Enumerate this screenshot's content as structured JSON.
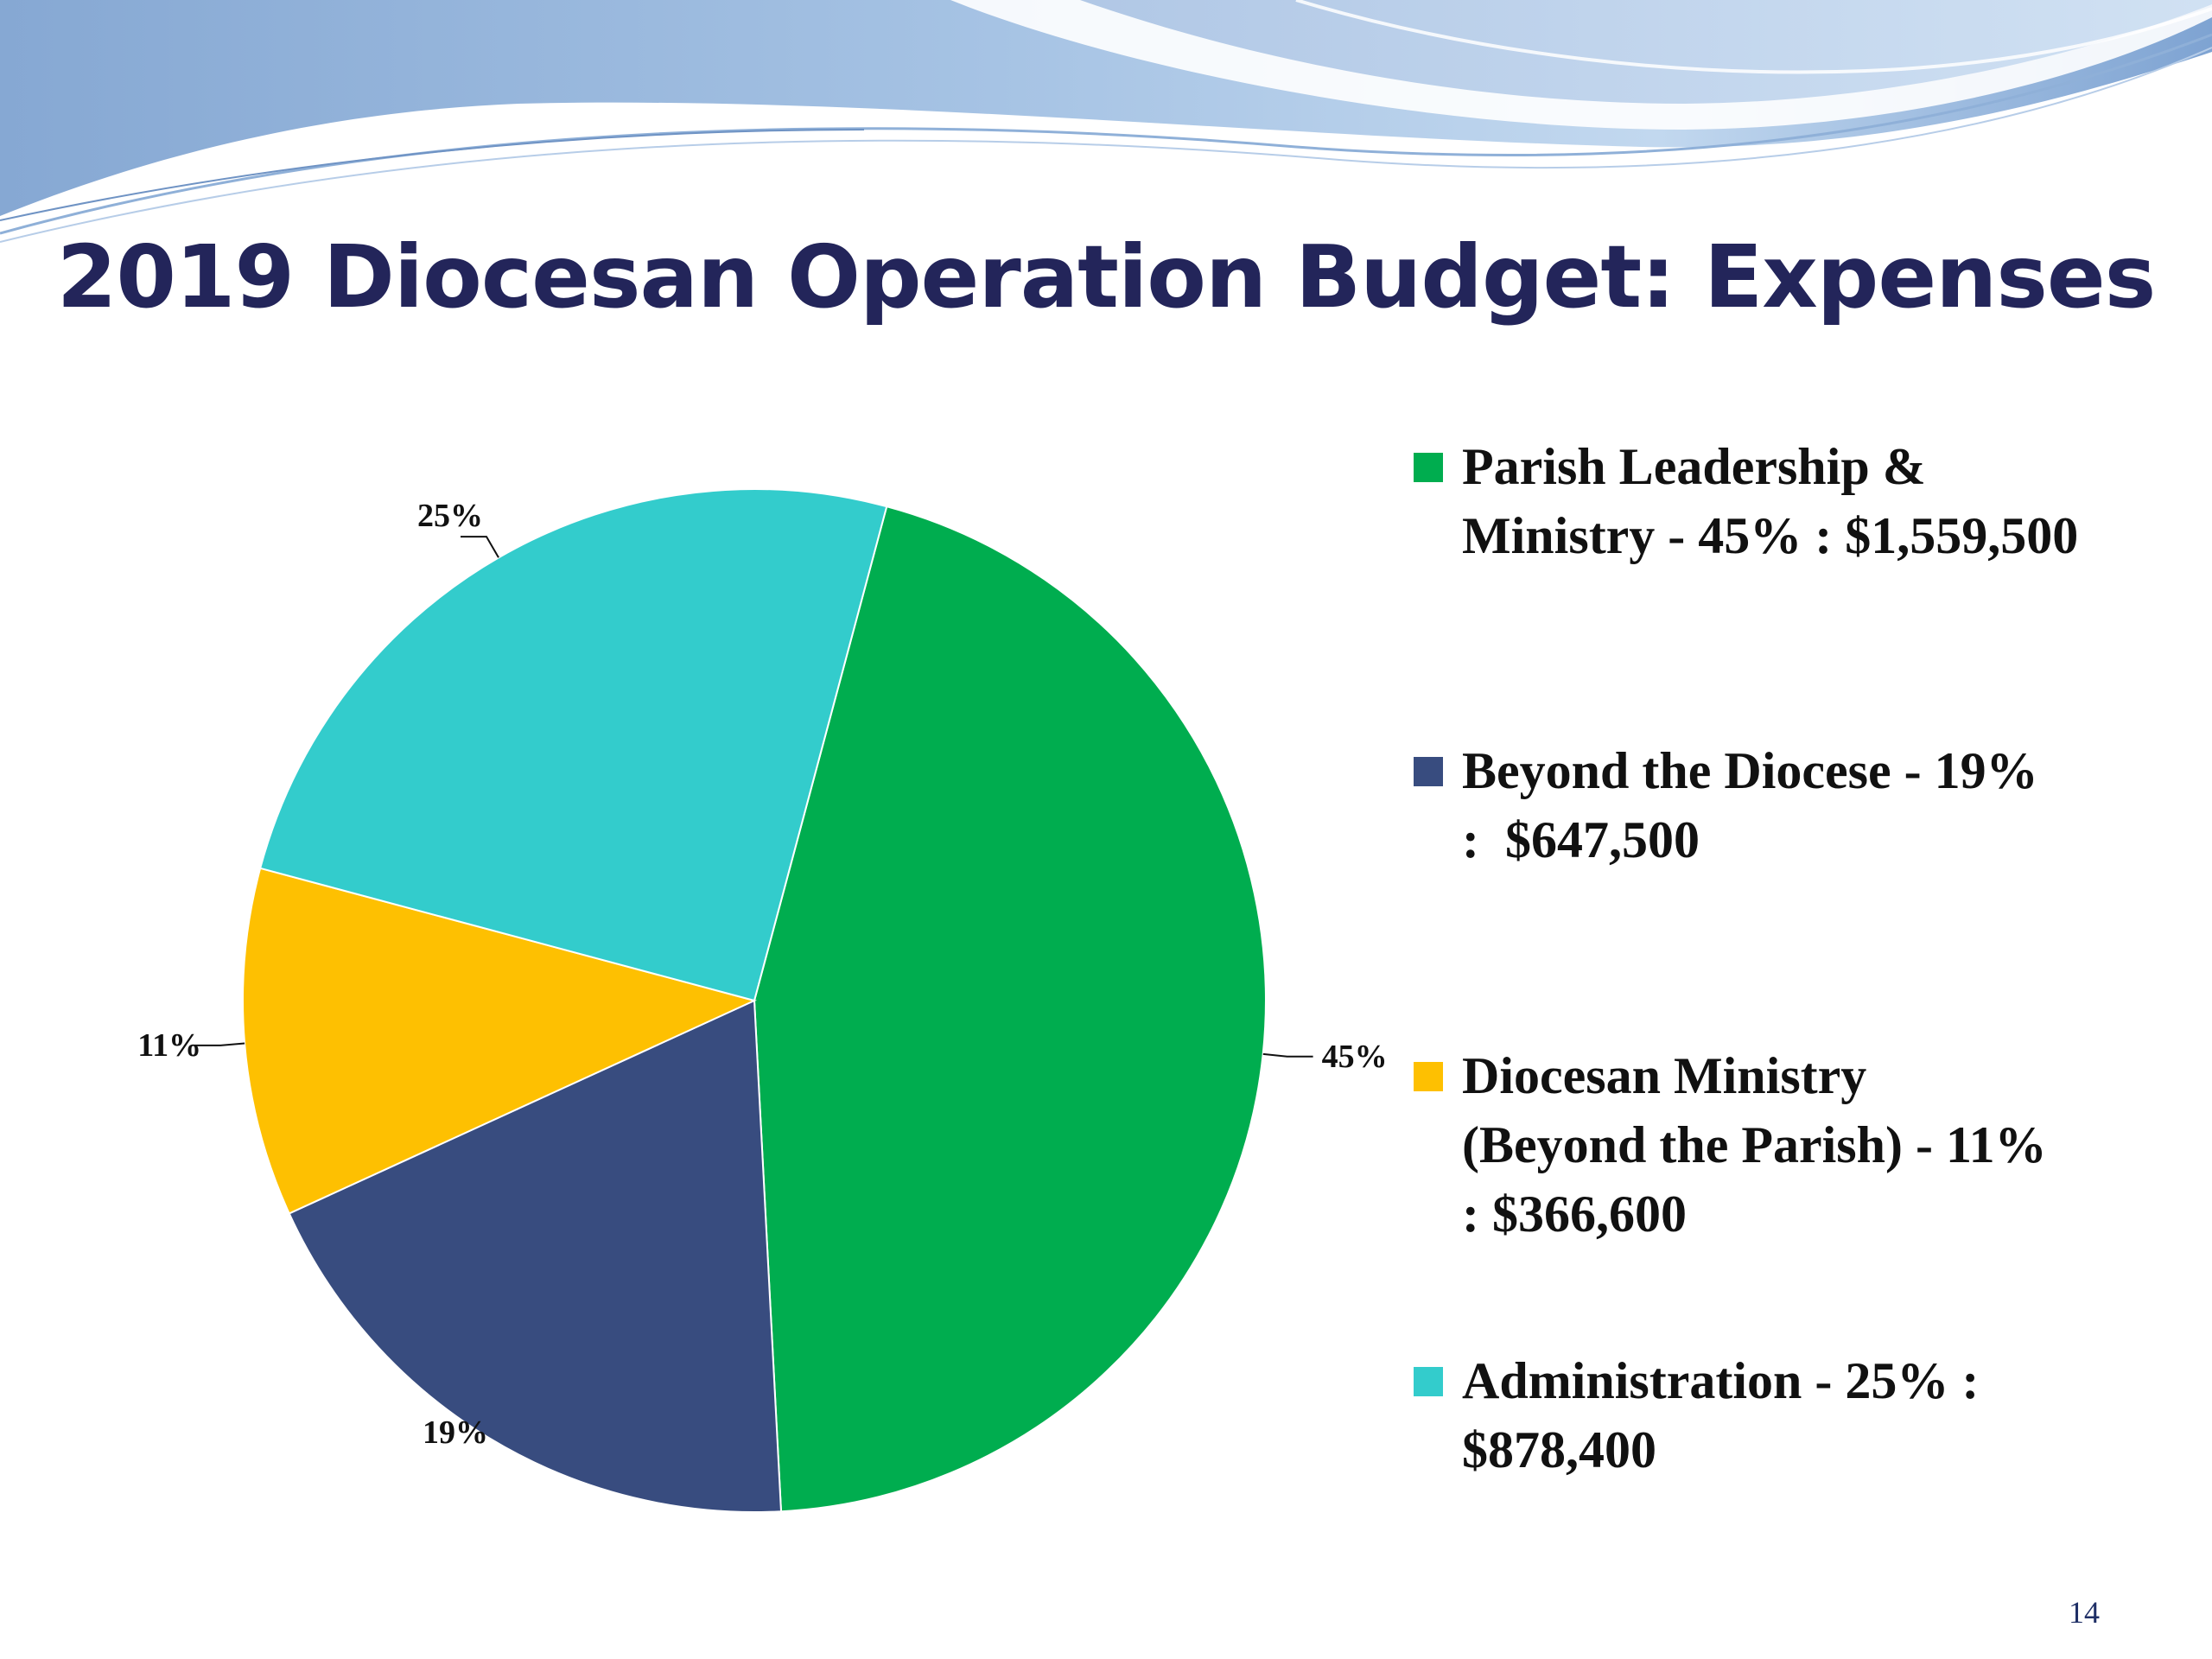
{
  "title": "2019 Diocesan Operation Budget: Expenses",
  "page_number": "14",
  "colors": {
    "title": "#23255a",
    "banner_light": "#a9c6e6",
    "banner_dark": "#8aaad3"
  },
  "chart_data": {
    "type": "pie",
    "title": "",
    "legend_position": "right",
    "start_angle_deg": 15,
    "direction": "clockwise",
    "slices": [
      {
        "label": "45%",
        "value": 45,
        "color": "#00ad4f",
        "legend_lines": [
          "Parish Leadership &",
          "Ministry - 45% : $1,559,500"
        ]
      },
      {
        "label": "19%",
        "value": 19,
        "color": "#384c7f",
        "legend_lines": [
          "Beyond the Diocese - 19%",
          ":  $647,500"
        ]
      },
      {
        "label": "11%",
        "value": 11,
        "color": "#fec001",
        "legend_lines": [
          "Diocesan Ministry",
          "(Beyond the Parish) - 11%",
          ": $366,600"
        ]
      },
      {
        "label": "25%",
        "value": 25,
        "color": "#33cccc",
        "legend_lines": [
          "Administration - 25% :",
          "$878,400"
        ]
      }
    ]
  }
}
